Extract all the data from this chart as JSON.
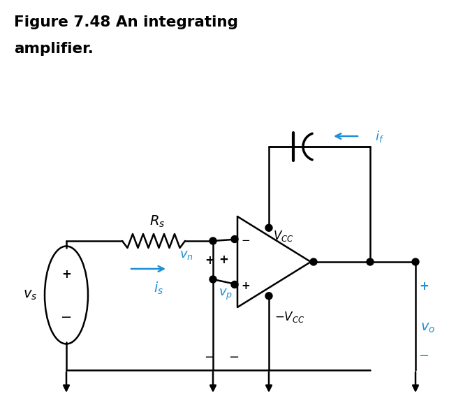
{
  "title_line1": "Figure 7.48 An integrating",
  "title_line2": "amplifier.",
  "title_color": "#000000",
  "circuit_color": "#000000",
  "blue_color": "#1E8FD5",
  "bg_color": "#FFFFFF",
  "figsize": [
    6.53,
    5.9
  ],
  "dpi": 100
}
